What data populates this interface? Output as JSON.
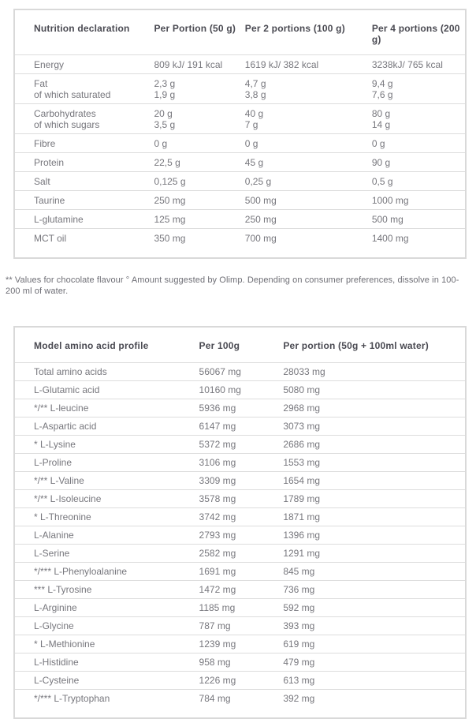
{
  "nutrition_table": {
    "headers": [
      "Nutrition declaration",
      "Per Portion (50 g)",
      "Per 2 portions (100 g)",
      "Per 4 portions (200 g)"
    ],
    "rows": [
      {
        "label": "Energy",
        "v1": "809 kJ/ 191 kcal",
        "v2": "1619 kJ/ 382 kcal",
        "v3": "3238kJ/ 765 kcal"
      },
      {
        "label": "Fat\nof which saturated",
        "v1": "2,3 g\n1,9 g",
        "v2": "4,7 g\n3,8 g",
        "v3": "9,4 g\n7,6 g"
      },
      {
        "label": "Carbohydrates\nof which sugars",
        "v1": "20 g\n3,5 g",
        "v2": "40 g\n7 g",
        "v3": "80 g\n14 g"
      },
      {
        "label": "Fibre",
        "v1": "0 g",
        "v2": "0 g",
        "v3": "0 g"
      },
      {
        "label": "Protein",
        "v1": "22,5 g",
        "v2": "45 g",
        "v3": "90 g"
      },
      {
        "label": "Salt",
        "v1": "0,125 g",
        "v2": "0,25 g",
        "v3": "0,5 g"
      },
      {
        "label": "Taurine",
        "v1": "250 mg",
        "v2": "500 mg",
        "v3": "1000 mg"
      },
      {
        "label": "L-glutamine",
        "v1": "125 mg",
        "v2": "250 mg",
        "v3": "500 mg"
      },
      {
        "label": "MCT oil",
        "v1": "350 mg",
        "v2": "700 mg",
        "v3": "1400 mg"
      }
    ]
  },
  "footnote": "** Values for chocolate flavour ° Amount suggested by Olimp. Depending on consumer preferences, dissolve in 100-200 ml of water.",
  "amino_table": {
    "headers": [
      "Model amino acid profile",
      "Per 100g",
      "Per portion (50g + 100ml water)"
    ],
    "rows": [
      {
        "label": "Total amino acids",
        "v1": "56067 mg",
        "v2": "28033 mg"
      },
      {
        "label": "L-Glutamic acid",
        "v1": "10160 mg",
        "v2": "5080 mg"
      },
      {
        "label": "*/** L-leucine",
        "v1": "5936 mg",
        "v2": "2968 mg"
      },
      {
        "label": "L-Aspartic acid",
        "v1": "6147 mg",
        "v2": "3073 mg"
      },
      {
        "label": "* L-Lysine",
        "v1": "5372 mg",
        "v2": "2686 mg"
      },
      {
        "label": "L-Proline",
        "v1": "3106 mg",
        "v2": "1553 mg"
      },
      {
        "label": "*/** L-Valine",
        "v1": "3309 mg",
        "v2": "1654 mg"
      },
      {
        "label": "*/** L-Isoleucine",
        "v1": "3578 mg",
        "v2": "1789 mg"
      },
      {
        "label": "* L-Threonine",
        "v1": "3742 mg",
        "v2": "1871 mg"
      },
      {
        "label": "L-Alanine",
        "v1": "2793 mg",
        "v2": "1396 mg"
      },
      {
        "label": "L-Serine",
        "v1": "2582 mg",
        "v2": "1291 mg"
      },
      {
        "label": "*/*** L-Phenyloalanine",
        "v1": "1691 mg",
        "v2": "845 mg"
      },
      {
        "label": "*** L-Tyrosine",
        "v1": "1472 mg",
        "v2": "736 mg"
      },
      {
        "label": "L-Arginine",
        "v1": "1185 mg",
        "v2": "592 mg"
      },
      {
        "label": "L-Glycine",
        "v1": "787 mg",
        "v2": "393 mg"
      },
      {
        "label": "* L-Methionine",
        "v1": "1239 mg",
        "v2": "619 mg"
      },
      {
        "label": "L-Histidine",
        "v1": "958 mg",
        "v2": "479 mg"
      },
      {
        "label": "L-Cysteine",
        "v1": "1226 mg",
        "v2": "613 mg"
      },
      {
        "label": "*/*** L-Tryptophan",
        "v1": "784 mg",
        "v2": "392 mg"
      }
    ]
  }
}
